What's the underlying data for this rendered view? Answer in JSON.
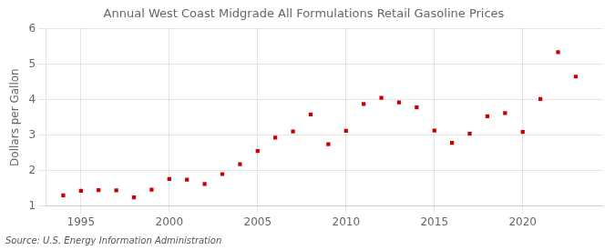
{
  "chart_data": {
    "type": "scatter",
    "title": "Annual West Coast Midgrade All Formulations Retail Gasoline Prices",
    "ylabel": "Dollars per Gallon",
    "annotation": "Source: U.S. Energy Information Administration",
    "x": [
      1994,
      1995,
      1996,
      1997,
      1998,
      1999,
      2000,
      2001,
      2002,
      2003,
      2004,
      2005,
      2006,
      2007,
      2008,
      2009,
      2010,
      2011,
      2012,
      2013,
      2014,
      2015,
      2016,
      2017,
      2018,
      2019,
      2020,
      2021,
      2022,
      2023
    ],
    "values": [
      1.3,
      1.43,
      1.45,
      1.44,
      1.24,
      1.46,
      1.76,
      1.74,
      1.62,
      1.9,
      2.18,
      2.55,
      2.93,
      3.1,
      3.58,
      2.74,
      3.12,
      3.88,
      4.05,
      3.92,
      3.78,
      3.13,
      2.78,
      3.04,
      3.53,
      3.62,
      3.09,
      4.02,
      5.34,
      4.65
    ],
    "color": "#cc0000",
    "marker": "square",
    "xlim": [
      1993.0,
      2024.5
    ],
    "ylim": [
      1,
      6
    ],
    "xticks": [
      1995,
      2000,
      2005,
      2010,
      2015,
      2020
    ],
    "yticks": [
      1,
      2,
      3,
      4,
      5,
      6
    ],
    "grid": true
  }
}
